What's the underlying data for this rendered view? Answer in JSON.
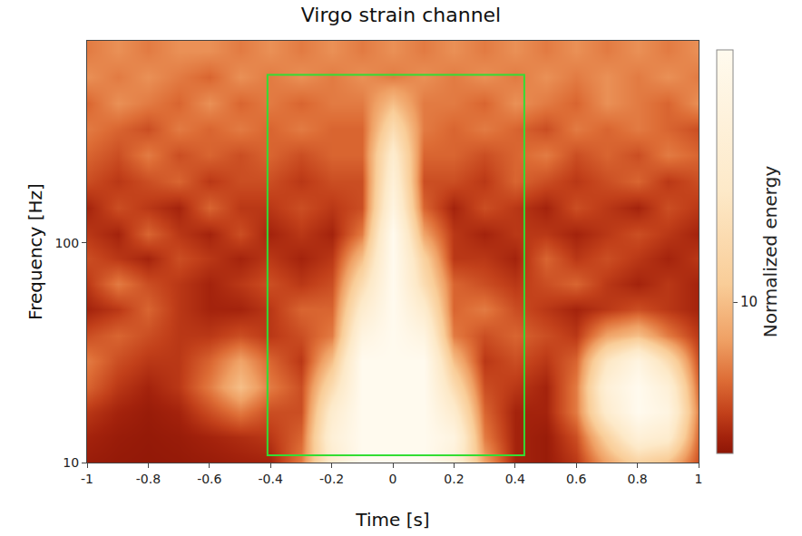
{
  "chart_data": {
    "type": "heatmap",
    "title": "Virgo strain channel",
    "x_label": "Time [s]",
    "y_label": "Frequency [Hz]",
    "x": [
      -1,
      -0.9,
      -0.8,
      -0.7,
      -0.6,
      -0.5,
      -0.4,
      -0.3,
      -0.2,
      -0.1,
      0,
      0.1,
      0.2,
      0.3,
      0.4,
      0.5,
      0.6,
      0.7,
      0.8,
      0.9,
      1
    ],
    "y": [
      10,
      13,
      17,
      22,
      29,
      38,
      50,
      65,
      85,
      110,
      145,
      190,
      250,
      330,
      430,
      570,
      750
    ],
    "cells": [
      [
        1.5,
        1.3,
        1.2,
        1.3,
        1.5,
        1.8,
        2,
        6,
        18,
        25,
        25,
        25,
        20,
        8,
        2,
        1.5,
        3,
        8,
        12,
        10,
        4
      ],
      [
        2,
        1.5,
        1.3,
        1.5,
        2,
        2.5,
        3,
        5,
        20,
        25,
        25,
        25,
        22,
        6,
        2,
        1.5,
        4,
        12,
        20,
        18,
        5
      ],
      [
        3,
        2,
        1.5,
        2,
        4,
        6,
        4,
        4,
        18,
        25,
        25,
        25,
        18,
        5,
        2,
        2,
        6,
        18,
        25,
        22,
        6
      ],
      [
        5,
        3,
        2,
        3,
        6,
        10,
        6,
        4,
        14,
        25,
        25,
        25,
        14,
        4,
        3,
        2,
        6,
        20,
        25,
        20,
        5
      ],
      [
        6,
        4,
        3,
        3,
        5,
        8,
        5,
        3,
        10,
        25,
        25,
        25,
        10,
        3,
        4,
        3,
        5,
        16,
        22,
        14,
        4
      ],
      [
        4,
        5,
        4,
        3,
        3,
        4,
        3,
        4,
        6,
        22,
        25,
        22,
        6,
        4,
        5,
        4,
        3,
        8,
        10,
        6,
        3
      ],
      [
        2,
        3,
        5,
        3,
        2,
        2,
        3,
        5,
        5,
        18,
        25,
        18,
        5,
        6,
        4,
        3,
        2,
        3,
        4,
        3,
        2
      ],
      [
        3,
        6,
        4,
        3,
        2,
        3,
        4,
        3,
        4,
        14,
        25,
        14,
        5,
        4,
        3,
        4,
        5,
        3,
        2,
        3,
        2
      ],
      [
        4,
        3,
        2,
        4,
        3,
        2,
        3,
        2,
        3,
        10,
        25,
        12,
        3,
        3,
        2,
        5,
        3,
        4,
        3,
        2,
        3
      ],
      [
        3,
        2,
        5,
        3,
        2,
        4,
        2,
        3,
        2,
        6,
        25,
        8,
        3,
        2,
        3,
        3,
        2,
        3,
        4,
        3,
        2
      ],
      [
        2,
        4,
        3,
        2,
        5,
        3,
        3,
        4,
        3,
        4,
        22,
        5,
        2,
        4,
        3,
        2,
        4,
        3,
        2,
        4,
        3
      ],
      [
        4,
        3,
        4,
        5,
        3,
        4,
        4,
        3,
        4,
        4,
        20,
        4,
        4,
        3,
        5,
        4,
        3,
        4,
        5,
        3,
        4
      ],
      [
        5,
        4,
        6,
        4,
        5,
        4,
        5,
        4,
        5,
        5,
        18,
        5,
        5,
        4,
        5,
        6,
        4,
        5,
        4,
        6,
        5
      ],
      [
        6,
        5,
        4,
        6,
        5,
        6,
        5,
        6,
        5,
        5,
        14,
        6,
        5,
        6,
        5,
        4,
        6,
        5,
        6,
        5,
        4
      ],
      [
        5,
        7,
        6,
        5,
        7,
        5,
        6,
        5,
        6,
        6,
        10,
        6,
        6,
        5,
        7,
        6,
        5,
        7,
        6,
        5,
        7
      ],
      [
        7,
        6,
        7,
        6,
        5,
        7,
        6,
        7,
        6,
        7,
        6,
        7,
        6,
        7,
        6,
        7,
        6,
        7,
        6,
        7,
        6
      ],
      [
        6,
        7,
        6,
        7,
        7,
        6,
        7,
        6,
        7,
        6,
        7,
        6,
        7,
        6,
        7,
        6,
        7,
        6,
        7,
        6,
        7
      ]
    ],
    "xlim": [
      -1,
      1
    ],
    "xticks": [
      -1,
      -0.8,
      -0.6,
      -0.4,
      -0.2,
      0,
      0.2,
      0.4,
      0.6,
      0.8,
      1
    ],
    "ylim": [
      10,
      830
    ],
    "yticks": [
      10,
      100
    ],
    "log": "y",
    "grid": true,
    "colorbar": {
      "label": "Normalized energy",
      "range": [
        1,
        25
      ],
      "ticks": [
        10
      ]
    },
    "box": {
      "x": [
        -0.41,
        0.43
      ],
      "y": [
        10.8,
        581
      ],
      "color": "#33dd33"
    }
  }
}
